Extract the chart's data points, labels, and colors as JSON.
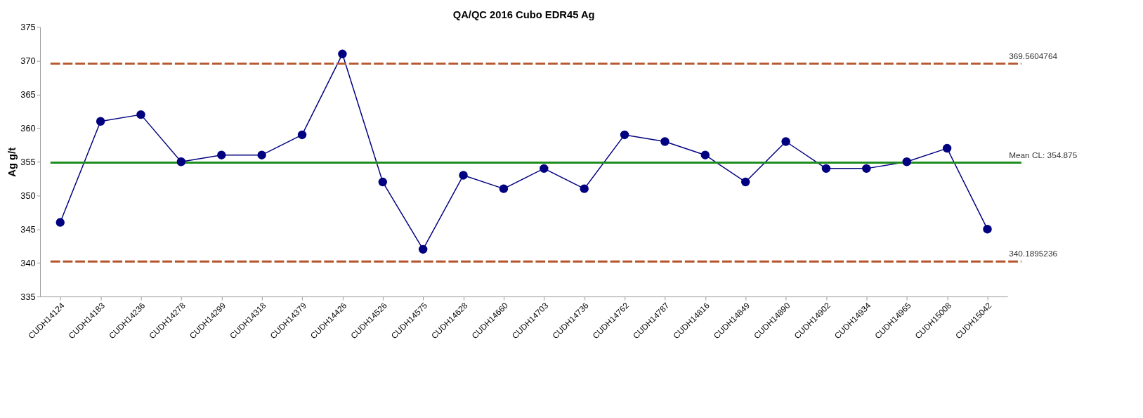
{
  "chart_data": {
    "type": "line",
    "title": "QA/QC 2016 Cubo EDR45 Ag",
    "ylabel": "Ag g/t",
    "categories": [
      "CUDH14124",
      "CUDH14183",
      "CUDH14236",
      "CUDH14278",
      "CUDH14299",
      "CUDH14318",
      "CUDH14379",
      "CUDH14426",
      "CUDH14526",
      "CUDH14575",
      "CUDH14628",
      "CUDH14660",
      "CUDH14703",
      "CUDH14736",
      "CUDH14762",
      "CUDH14787",
      "CUDH14816",
      "CUDH14849",
      "CUDH14890",
      "CUDH14902",
      "CUDH14934",
      "CUDH14965",
      "CUDH15008",
      "CUDH15042"
    ],
    "series": [
      {
        "color": "#000080",
        "values": [
          346,
          361,
          362,
          355,
          356,
          356,
          359,
          371,
          352,
          342,
          353,
          351,
          354,
          351,
          359,
          358,
          356,
          352,
          358,
          354,
          354,
          355,
          357,
          345
        ]
      }
    ],
    "ylim": [
      335,
      375
    ],
    "yticks": [
      335,
      340,
      345,
      350,
      355,
      360,
      365,
      370,
      375
    ],
    "marker": "circle",
    "ref_lines": [
      {
        "axis": "y",
        "value": 369.5604764,
        "label": "369.5604764",
        "color": "#b5532a",
        "line_style": "dashed"
      },
      {
        "axis": "y",
        "value": 354.875,
        "label": "Mean CL: 354.875",
        "color": "#1e8c1e",
        "line_style": "solid"
      },
      {
        "axis": "y",
        "value": 340.1895236,
        "label": "340.1895236",
        "color": "#b5532a",
        "line_style": "dashed"
      }
    ]
  }
}
